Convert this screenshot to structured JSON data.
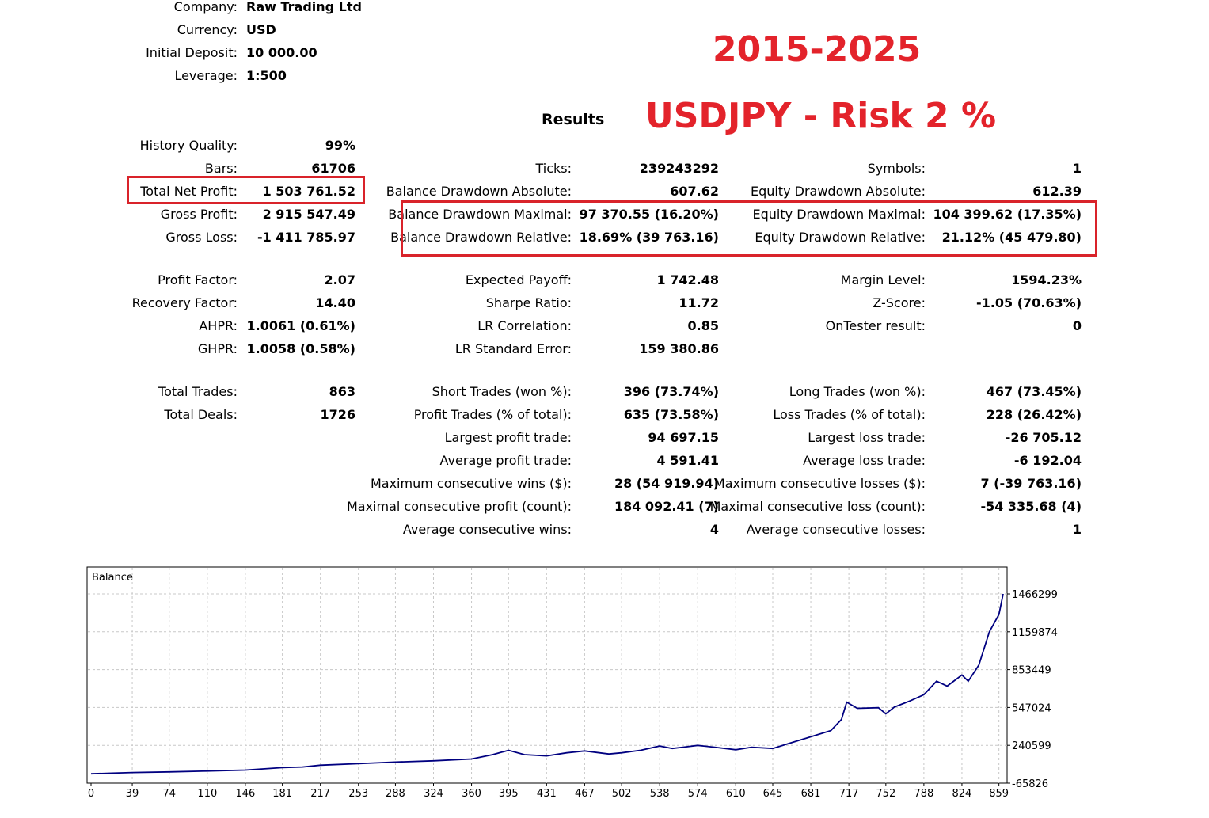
{
  "header": {
    "company_label": "Company:",
    "company": "Raw Trading Ltd",
    "currency_label": "Currency:",
    "currency": "USD",
    "deposit_label": "Initial Deposit:",
    "deposit": "10 000.00",
    "leverage_label": "Leverage:",
    "leverage": "1:500"
  },
  "annotation": {
    "years": "2015-2025",
    "subtitle": "USDJPY - Risk 2 %"
  },
  "results_title": "Results",
  "col1": [
    {
      "label": "History Quality:",
      "value": "99%"
    },
    {
      "label": "Bars:",
      "value": "61706"
    },
    {
      "label": "Total Net Profit:",
      "value": "1 503 761.52"
    },
    {
      "label": "Gross Profit:",
      "value": "2 915 547.49"
    },
    {
      "label": "Gross Loss:",
      "value": "-1 411 785.97"
    },
    {
      "label": "Profit Factor:",
      "value": "2.07"
    },
    {
      "label": "Recovery Factor:",
      "value": "14.40"
    },
    {
      "label": "AHPR:",
      "value": "1.0061 (0.61%)"
    },
    {
      "label": "GHPR:",
      "value": "1.0058 (0.58%)"
    },
    {
      "label": "Total Trades:",
      "value": "863"
    },
    {
      "label": "Total Deals:",
      "value": "1726"
    }
  ],
  "col2": [
    {
      "label": "Ticks:",
      "value": "239243292"
    },
    {
      "label": "Balance Drawdown Absolute:",
      "value": "607.62"
    },
    {
      "label": "Balance Drawdown Maximal:",
      "value": "97 370.55 (16.20%)"
    },
    {
      "label": "Balance Drawdown Relative:",
      "value": "18.69% (39 763.16)"
    },
    {
      "label": "Expected Payoff:",
      "value": "1 742.48"
    },
    {
      "label": "Sharpe Ratio:",
      "value": "11.72"
    },
    {
      "label": "LR Correlation:",
      "value": "0.85"
    },
    {
      "label": "LR Standard Error:",
      "value": "159 380.86"
    },
    {
      "label": "Short Trades (won %):",
      "value": "396 (73.74%)"
    },
    {
      "label": "Profit Trades (% of total):",
      "value": "635 (73.58%)"
    },
    {
      "label": "Largest profit trade:",
      "value": "94 697.15"
    },
    {
      "label": "Average profit trade:",
      "value": "4 591.41"
    },
    {
      "label": "Maximum consecutive wins ($):",
      "value": "28 (54 919.94)"
    },
    {
      "label": "Maximal consecutive profit (count):",
      "value": "184 092.41 (7)"
    },
    {
      "label": "Average consecutive wins:",
      "value": "4"
    }
  ],
  "col3": [
    {
      "label": "Symbols:",
      "value": "1"
    },
    {
      "label": "Equity Drawdown Absolute:",
      "value": "612.39"
    },
    {
      "label": "Equity Drawdown Maximal:",
      "value": "104 399.62 (17.35%)"
    },
    {
      "label": "Equity Drawdown Relative:",
      "value": "21.12% (45 479.80)"
    },
    {
      "label": "Margin Level:",
      "value": "1594.23%"
    },
    {
      "label": "Z-Score:",
      "value": "-1.05 (70.63%)"
    },
    {
      "label": "OnTester result:",
      "value": "0"
    },
    {
      "label": "Long Trades (won %):",
      "value": "467 (73.45%)"
    },
    {
      "label": "Loss Trades (% of total):",
      "value": "228 (26.42%)"
    },
    {
      "label": "Largest loss trade:",
      "value": "-26 705.12"
    },
    {
      "label": "Average loss trade:",
      "value": "-6 192.04"
    },
    {
      "label": "Maximum consecutive losses ($):",
      "value": "7 (-39 763.16)"
    },
    {
      "label": "Maximal consecutive loss (count):",
      "value": "-54 335.68 (4)"
    },
    {
      "label": "Average consecutive losses:",
      "value": "1"
    }
  ],
  "chart_data": {
    "type": "line",
    "title": "Balance",
    "line_color": "#000080",
    "grid": true,
    "x_ticks": [
      0,
      39,
      74,
      110,
      146,
      181,
      217,
      253,
      288,
      324,
      360,
      395,
      431,
      467,
      502,
      538,
      574,
      610,
      645,
      681,
      717,
      752,
      788,
      824,
      859
    ],
    "y_ticks": [
      1466299,
      1159874,
      853449,
      547024,
      240599,
      -65826
    ],
    "ylim": [
      -65826,
      1466299
    ],
    "xlim": [
      0,
      863
    ],
    "series": [
      {
        "x": [
          0,
          20,
          39,
          74,
          110,
          146,
          181,
          200,
          217,
          253,
          288,
          324,
          360,
          380,
          395,
          410,
          431,
          450,
          467,
          490,
          502,
          520,
          538,
          550,
          560,
          574,
          590,
          610,
          625,
          645,
          660,
          681,
          700,
          710,
          715,
          725,
          745,
          752,
          760,
          775,
          788,
          800,
          810,
          824,
          830,
          840,
          850,
          859,
          863
        ],
        "values": [
          10000,
          15000,
          20000,
          25000,
          32000,
          40000,
          60000,
          65000,
          80000,
          92000,
          105000,
          115000,
          130000,
          165000,
          200000,
          165000,
          155000,
          180000,
          195000,
          170000,
          180000,
          200000,
          235000,
          215000,
          225000,
          240000,
          225000,
          205000,
          225000,
          215000,
          255000,
          310000,
          360000,
          450000,
          590000,
          540000,
          545000,
          495000,
          550000,
          600000,
          650000,
          760000,
          720000,
          810000,
          760000,
          890000,
          1160000,
          1300000,
          1466299
        ]
      }
    ]
  }
}
